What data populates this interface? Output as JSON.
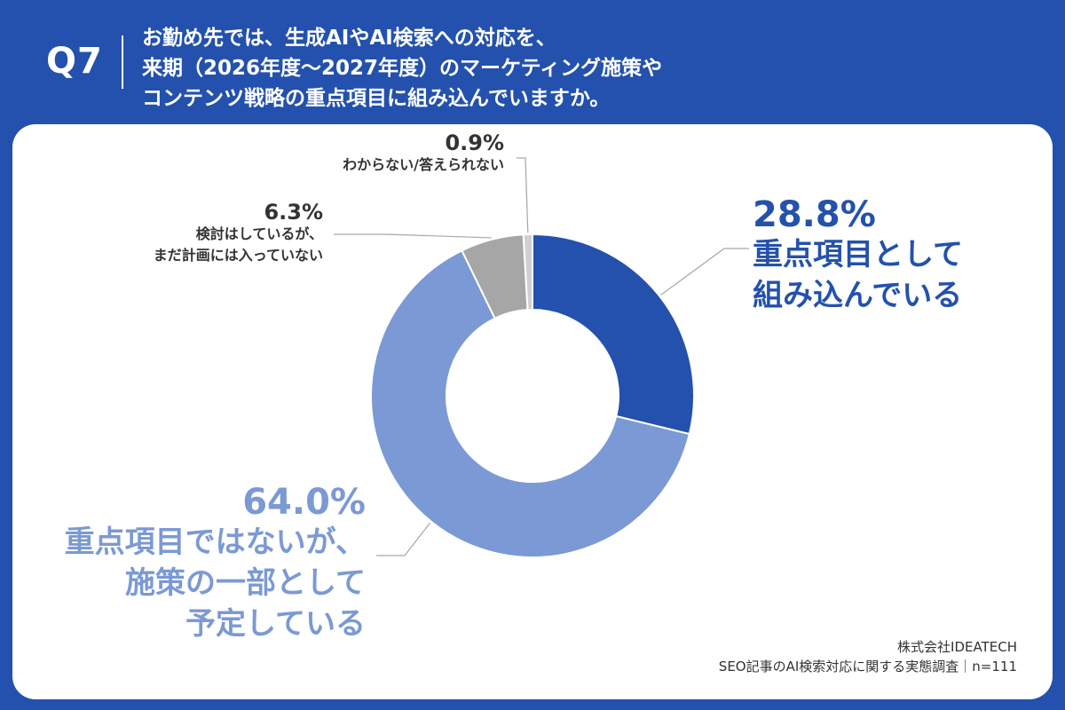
{
  "header": {
    "q_label": "Q7",
    "question_lines": [
      "お勤め先では、生成AIやAI検索への対応を、",
      "来期（2026年度〜2027年度）のマーケティング施策や",
      "コンテンツ戦略の重点項目に組み込んでいますか。"
    ]
  },
  "colors": {
    "background": "#2351ad",
    "panel": "#ffffff",
    "slice_1": "#2351ad",
    "slice_2": "#7b99d4",
    "slice_3": "#a6a6a6",
    "slice_4": "#d0d0d0"
  },
  "chart_data": {
    "type": "pie",
    "variant": "donut",
    "start_angle_deg": 0,
    "direction": "clockwise",
    "slices": [
      {
        "label_lines": [
          "重点項目として",
          "組み込んでいる"
        ],
        "value": 28.8,
        "value_text": "28.8%",
        "color": "#2351ad"
      },
      {
        "label_lines": [
          "重点項目ではないが、",
          "施策の一部として",
          "予定している"
        ],
        "value": 64.0,
        "value_text": "64.0%",
        "color": "#7b99d4"
      },
      {
        "label_lines": [
          "検討はしているが、",
          "まだ計画には入っていない"
        ],
        "value": 6.3,
        "value_text": "6.3%",
        "color": "#a6a6a6"
      },
      {
        "label_lines": [
          "わからない/答えられない"
        ],
        "value": 0.9,
        "value_text": "0.9%",
        "color": "#d0d0d0"
      }
    ]
  },
  "footer": {
    "company": "株式会社IDEATECH",
    "survey": "SEO記事のAI検索対応に関する実態調査｜n=111"
  }
}
